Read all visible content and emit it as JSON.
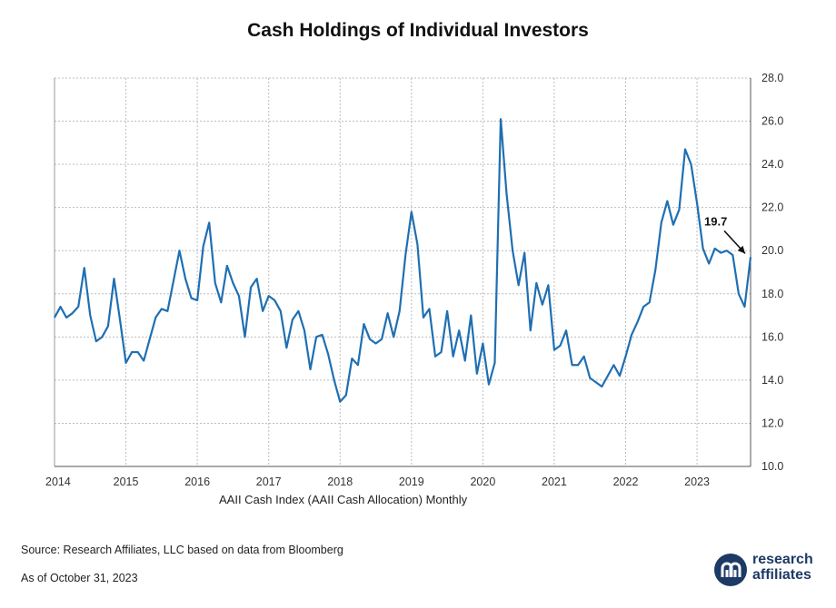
{
  "title": "Cash Holdings of Individual Investors",
  "series_label": "AAII Cash Index (AAII Cash Allocation) Monthly",
  "source": "Source: Research Affiliates, LLC based on data from Bloomberg",
  "as_of": "As of October 31, 2023",
  "logo": {
    "line1": "research",
    "line2": "affiliates",
    "mark": "ra-logo-icon"
  },
  "colors": {
    "line": "#1f6fb2",
    "grid": "#bdbdbd",
    "logo": "#1d3a66"
  },
  "chart_data": {
    "type": "line",
    "title": "Cash Holdings of Individual Investors",
    "xlabel": "",
    "ylabel": "",
    "ylim": [
      10.0,
      28.0
    ],
    "xlim": [
      "2014-01",
      "2023-10"
    ],
    "y_axis_position": "right",
    "grid": true,
    "x_ticks": [
      "2014",
      "2015",
      "2016",
      "2017",
      "2018",
      "2019",
      "2020",
      "2021",
      "2022",
      "2023"
    ],
    "y_ticks": [
      "10.0",
      "12.0",
      "14.0",
      "16.0",
      "18.0",
      "20.0",
      "22.0",
      "24.0",
      "26.0",
      "28.0"
    ],
    "annotation": {
      "text": "19.7",
      "x": "2023-10",
      "y": 19.7
    },
    "series": [
      {
        "x": [
          "2014-01",
          "2014-02",
          "2014-03",
          "2014-04",
          "2014-05",
          "2014-06",
          "2014-07",
          "2014-08",
          "2014-09",
          "2014-10",
          "2014-11",
          "2014-12",
          "2015-01",
          "2015-02",
          "2015-03",
          "2015-04",
          "2015-05",
          "2015-06",
          "2015-07",
          "2015-08",
          "2015-09",
          "2015-10",
          "2015-11",
          "2015-12",
          "2016-01",
          "2016-02",
          "2016-03",
          "2016-04",
          "2016-05",
          "2016-06",
          "2016-07",
          "2016-08",
          "2016-09",
          "2016-10",
          "2016-11",
          "2016-12",
          "2017-01",
          "2017-02",
          "2017-03",
          "2017-04",
          "2017-05",
          "2017-06",
          "2017-07",
          "2017-08",
          "2017-09",
          "2017-10",
          "2017-11",
          "2017-12",
          "2018-01",
          "2018-02",
          "2018-03",
          "2018-04",
          "2018-05",
          "2018-06",
          "2018-07",
          "2018-08",
          "2018-09",
          "2018-10",
          "2018-11",
          "2018-12",
          "2019-01",
          "2019-02",
          "2019-03",
          "2019-04",
          "2019-05",
          "2019-06",
          "2019-07",
          "2019-08",
          "2019-09",
          "2019-10",
          "2019-11",
          "2019-12",
          "2020-01",
          "2020-02",
          "2020-03",
          "2020-04",
          "2020-05",
          "2020-06",
          "2020-07",
          "2020-08",
          "2020-09",
          "2020-10",
          "2020-11",
          "2020-12",
          "2021-01",
          "2021-02",
          "2021-03",
          "2021-04",
          "2021-05",
          "2021-06",
          "2021-07",
          "2021-08",
          "2021-09",
          "2021-10",
          "2021-11",
          "2021-12",
          "2022-01",
          "2022-02",
          "2022-03",
          "2022-04",
          "2022-05",
          "2022-06",
          "2022-07",
          "2022-08",
          "2022-09",
          "2022-10",
          "2022-11",
          "2022-12",
          "2023-01",
          "2023-02",
          "2023-03",
          "2023-04",
          "2023-05",
          "2023-06",
          "2023-07",
          "2023-08",
          "2023-09",
          "2023-10"
        ],
        "values": [
          16.9,
          17.4,
          16.9,
          17.1,
          17.4,
          19.2,
          17.0,
          15.8,
          16.0,
          16.5,
          18.7,
          16.8,
          14.8,
          15.3,
          15.3,
          14.9,
          15.9,
          16.9,
          17.3,
          17.2,
          18.6,
          20.0,
          18.7,
          17.8,
          17.7,
          20.2,
          21.3,
          18.5,
          17.6,
          19.3,
          18.5,
          17.9,
          16.0,
          18.3,
          18.7,
          17.2,
          17.9,
          17.7,
          17.2,
          15.5,
          16.8,
          17.2,
          16.3,
          14.5,
          16.0,
          16.1,
          15.2,
          14.0,
          13.0,
          13.3,
          15.0,
          14.7,
          16.6,
          15.9,
          15.7,
          15.9,
          17.1,
          16.0,
          17.2,
          19.8,
          21.8,
          20.3,
          16.9,
          17.3,
          15.1,
          15.3,
          17.2,
          15.1,
          16.3,
          14.9,
          17.0,
          14.3,
          15.7,
          13.8,
          14.8,
          26.1,
          22.6,
          20.0,
          18.4,
          19.9,
          16.3,
          18.5,
          17.5,
          18.4,
          15.4,
          15.6,
          16.3,
          14.7,
          14.7,
          15.1,
          14.1,
          13.9,
          13.7,
          14.2,
          14.7,
          14.2,
          15.1,
          16.1,
          16.7,
          17.4,
          17.6,
          19.1,
          21.3,
          22.3,
          21.2,
          21.9,
          24.7,
          24.0,
          22.2,
          20.1,
          19.4,
          20.1,
          19.9,
          20.0,
          19.8,
          18.0,
          17.4,
          19.7
        ]
      }
    ]
  }
}
